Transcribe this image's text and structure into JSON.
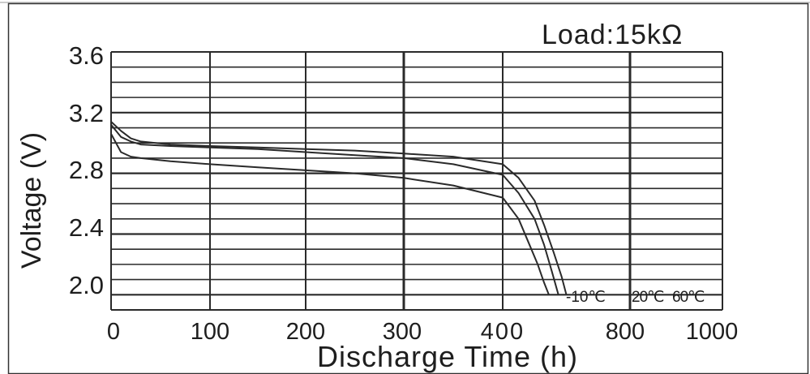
{
  "chart_data": {
    "type": "line",
    "title": "",
    "annotation": "Load:15kΩ",
    "xlabel": "Discharge Time (h)",
    "ylabel": "Voltage (V)",
    "x_ticks": [
      "0",
      "100",
      "200",
      "300",
      "400",
      "800",
      "1000"
    ],
    "y_ticks": [
      "3.6",
      "3.2",
      "2.8",
      "2.4",
      "2.0"
    ],
    "ylim": [
      1.9,
      3.6
    ],
    "grid": true,
    "legend": "none",
    "series": [
      {
        "name": "-10℃",
        "points": [
          [
            0,
            3.06
          ],
          [
            10,
            2.94
          ],
          [
            20,
            2.91
          ],
          [
            30,
            2.9
          ],
          [
            60,
            2.88
          ],
          [
            100,
            2.86
          ],
          [
            150,
            2.84
          ],
          [
            200,
            2.82
          ],
          [
            250,
            2.8
          ],
          [
            300,
            2.77
          ],
          [
            350,
            2.72
          ],
          [
            400,
            2.64
          ],
          [
            450,
            2.5
          ],
          [
            480,
            2.35
          ],
          [
            510,
            2.2
          ],
          [
            530,
            2.08
          ],
          [
            545,
            2.0
          ]
        ]
      },
      {
        "name": "20℃",
        "points": [
          [
            0,
            3.12
          ],
          [
            10,
            3.04
          ],
          [
            20,
            3.01
          ],
          [
            30,
            2.99
          ],
          [
            60,
            2.98
          ],
          [
            100,
            2.97
          ],
          [
            150,
            2.96
          ],
          [
            200,
            2.94
          ],
          [
            250,
            2.92
          ],
          [
            300,
            2.9
          ],
          [
            350,
            2.86
          ],
          [
            400,
            2.79
          ],
          [
            450,
            2.67
          ],
          [
            500,
            2.5
          ],
          [
            530,
            2.33
          ],
          [
            555,
            2.15
          ],
          [
            575,
            2.0
          ]
        ]
      },
      {
        "name": "60℃",
        "points": [
          [
            0,
            3.14
          ],
          [
            10,
            3.08
          ],
          [
            20,
            3.03
          ],
          [
            30,
            3.01
          ],
          [
            60,
            2.99
          ],
          [
            100,
            2.98
          ],
          [
            150,
            2.97
          ],
          [
            200,
            2.96
          ],
          [
            250,
            2.95
          ],
          [
            300,
            2.93
          ],
          [
            350,
            2.91
          ],
          [
            400,
            2.86
          ],
          [
            450,
            2.77
          ],
          [
            500,
            2.62
          ],
          [
            530,
            2.46
          ],
          [
            560,
            2.28
          ],
          [
            585,
            2.12
          ],
          [
            600,
            2.0
          ]
        ]
      }
    ]
  },
  "colors": {
    "grid": "#2a2a2a",
    "curve": "#2a2a2a",
    "text": "#1e1e1e"
  }
}
